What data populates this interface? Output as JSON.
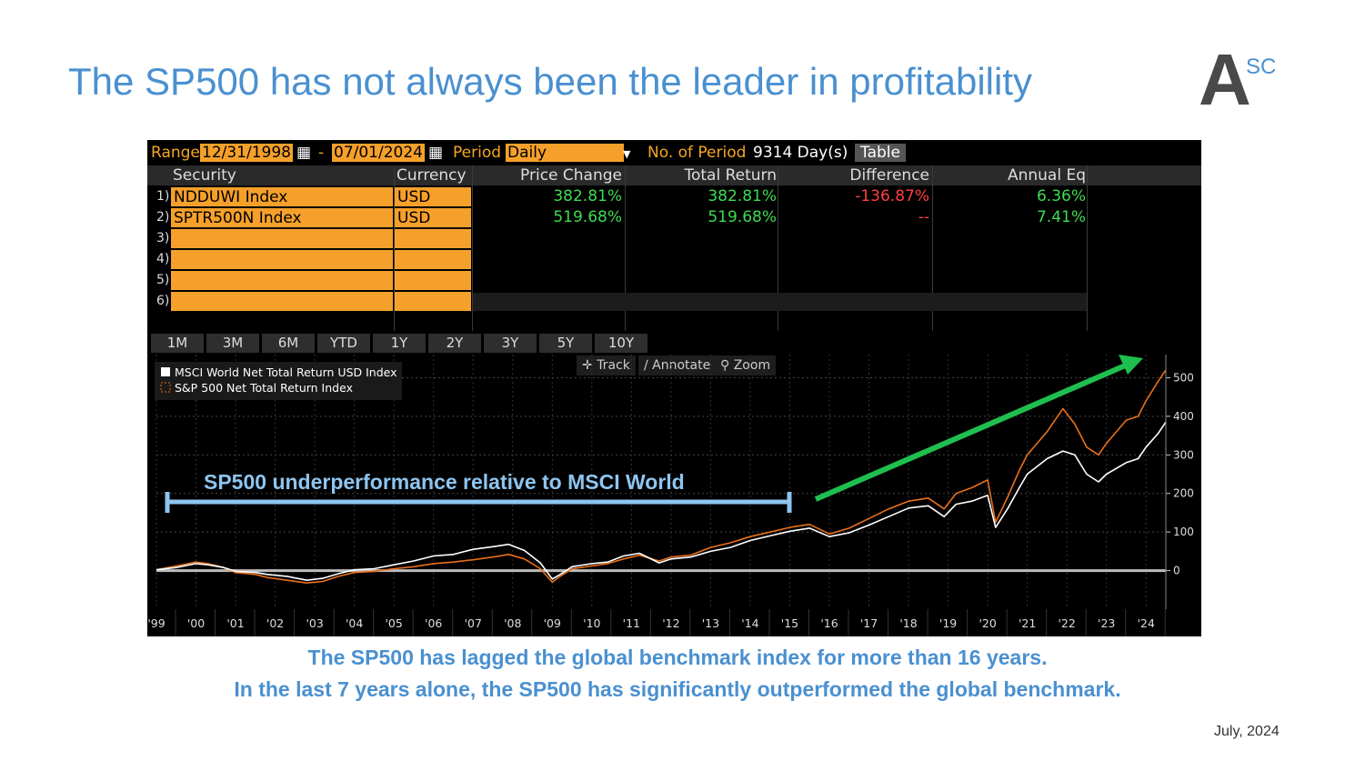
{
  "title": "The SP500 has not always been the leader in profitability",
  "logo": {
    "letter": "A",
    "sup": "SC"
  },
  "terminal": {
    "range_label": "Range",
    "start_date": "12/31/1998",
    "dash": "-",
    "end_date": "07/01/2024",
    "period_label": "Period",
    "period_value": "Daily",
    "nperiod_label": "No. of Period",
    "nperiod_value": "9314 Day(s)",
    "table_button": "Table",
    "columns": [
      "Security",
      "Currency",
      "Price Change",
      "Total Return",
      "Difference",
      "Annual Eq"
    ],
    "rows": [
      {
        "num": "1)",
        "security": "NDDUWI Index",
        "currency": "USD",
        "price_change": "382.81%",
        "total_return": "382.81%",
        "difference": "-136.87%",
        "annual_eq": "6.36%"
      },
      {
        "num": "2)",
        "security": "SPTR500N Index",
        "currency": "USD",
        "price_change": "519.68%",
        "total_return": "519.68%",
        "difference": "--",
        "annual_eq": "7.41%"
      },
      {
        "num": "3)",
        "security": "",
        "currency": "",
        "price_change": "",
        "total_return": "",
        "difference": "",
        "annual_eq": ""
      },
      {
        "num": "4)",
        "security": "",
        "currency": "",
        "price_change": "",
        "total_return": "",
        "difference": "",
        "annual_eq": ""
      },
      {
        "num": "5)",
        "security": "",
        "currency": "",
        "price_change": "",
        "total_return": "",
        "difference": "",
        "annual_eq": ""
      },
      {
        "num": "6)",
        "security": "",
        "currency": "",
        "price_change": "",
        "total_return": "",
        "difference": "",
        "annual_eq": ""
      }
    ],
    "tabs": [
      "1M",
      "3M",
      "6M",
      "YTD",
      "1Y",
      "2Y",
      "3Y",
      "5Y",
      "10Y"
    ],
    "tools": {
      "track": "Track",
      "annotate": "Annotate",
      "zoom": "Zoom"
    }
  },
  "chart_data": {
    "type": "line",
    "legend": [
      "MSCI World Net Total Return USD Index",
      "S&P 500 Net Total Return Index"
    ],
    "legend_position": "top-left",
    "x_tick_labels": [
      "'99",
      "'00",
      "'01",
      "'02",
      "'03",
      "'04",
      "'05",
      "'06",
      "'07",
      "'08",
      "'09",
      "'10",
      "'11",
      "'12",
      "'13",
      "'14",
      "'15",
      "'16",
      "'17",
      "'18",
      "'19",
      "'20",
      "'21",
      "'22",
      "'23",
      "'24"
    ],
    "y_ticks": [
      0,
      100,
      200,
      300,
      400,
      500
    ],
    "ylim": [
      -100,
      560
    ],
    "xlim": [
      1999,
      2024.5
    ],
    "grid": true,
    "series": [
      {
        "name": "MSCI World Net Total Return USD Index",
        "color": "#ffffff",
        "x": [
          1999.0,
          1999.5,
          2000.0,
          2000.3,
          2000.7,
          2001.0,
          2001.5,
          2001.8,
          2002.3,
          2002.8,
          2003.2,
          2003.6,
          2004.0,
          2004.5,
          2005.0,
          2005.5,
          2006.0,
          2006.5,
          2007.0,
          2007.5,
          2007.9,
          2008.3,
          2008.7,
          2009.0,
          2009.2,
          2009.5,
          2010.0,
          2010.4,
          2010.8,
          2011.2,
          2011.7,
          2012.0,
          2012.5,
          2013.0,
          2013.5,
          2014.0,
          2014.5,
          2015.0,
          2015.5,
          2016.0,
          2016.5,
          2017.0,
          2017.5,
          2018.0,
          2018.5,
          2018.9,
          2019.2,
          2019.6,
          2020.0,
          2020.2,
          2020.5,
          2020.8,
          2021.0,
          2021.5,
          2021.9,
          2022.2,
          2022.5,
          2022.8,
          2023.0,
          2023.5,
          2023.8,
          2024.0,
          2024.3,
          2024.5
        ],
        "y": [
          2,
          8,
          18,
          15,
          8,
          -2,
          -5,
          -10,
          -15,
          -25,
          -20,
          -8,
          2,
          5,
          15,
          25,
          38,
          42,
          55,
          62,
          68,
          52,
          20,
          -22,
          -10,
          10,
          18,
          22,
          38,
          45,
          20,
          30,
          35,
          50,
          60,
          78,
          90,
          102,
          110,
          88,
          98,
          118,
          140,
          162,
          168,
          140,
          172,
          180,
          195,
          112,
          160,
          215,
          250,
          290,
          310,
          300,
          250,
          230,
          250,
          280,
          290,
          320,
          355,
          385
        ]
      },
      {
        "name": "S&P 500 Net Total Return Index",
        "color": "#e8701a",
        "x": [
          1999.0,
          1999.5,
          2000.0,
          2000.3,
          2000.7,
          2001.0,
          2001.5,
          2001.8,
          2002.3,
          2002.8,
          2003.2,
          2003.6,
          2004.0,
          2004.5,
          2005.0,
          2005.5,
          2006.0,
          2006.5,
          2007.0,
          2007.5,
          2007.9,
          2008.3,
          2008.7,
          2009.0,
          2009.2,
          2009.5,
          2010.0,
          2010.4,
          2010.8,
          2011.2,
          2011.7,
          2012.0,
          2012.5,
          2013.0,
          2013.5,
          2014.0,
          2014.5,
          2015.0,
          2015.5,
          2016.0,
          2016.5,
          2017.0,
          2017.5,
          2018.0,
          2018.5,
          2018.9,
          2019.2,
          2019.6,
          2020.0,
          2020.2,
          2020.5,
          2020.8,
          2021.0,
          2021.5,
          2021.9,
          2022.2,
          2022.5,
          2022.8,
          2023.0,
          2023.5,
          2023.8,
          2024.0,
          2024.3,
          2024.5
        ],
        "y": [
          2,
          12,
          22,
          18,
          8,
          -5,
          -10,
          -18,
          -25,
          -32,
          -28,
          -15,
          -5,
          -2,
          5,
          10,
          18,
          22,
          28,
          35,
          42,
          30,
          5,
          -30,
          -15,
          5,
          12,
          18,
          30,
          40,
          25,
          35,
          40,
          60,
          72,
          88,
          100,
          112,
          120,
          95,
          110,
          135,
          160,
          180,
          188,
          160,
          200,
          215,
          235,
          125,
          190,
          260,
          300,
          360,
          420,
          380,
          320,
          300,
          330,
          390,
          400,
          440,
          490,
          520
        ]
      }
    ]
  },
  "annotation": {
    "label": "SP500 underperformance relative to MSCI World",
    "bracket_color": "#8ec5f0",
    "arrow_color": "#1fbf4f"
  },
  "footnotes": [
    "The SP500 has lagged the global benchmark index for more than 16 years.",
    "In the last 7 years alone, the SP500 has significantly outperformed the global benchmark."
  ],
  "date": "July, 2024"
}
